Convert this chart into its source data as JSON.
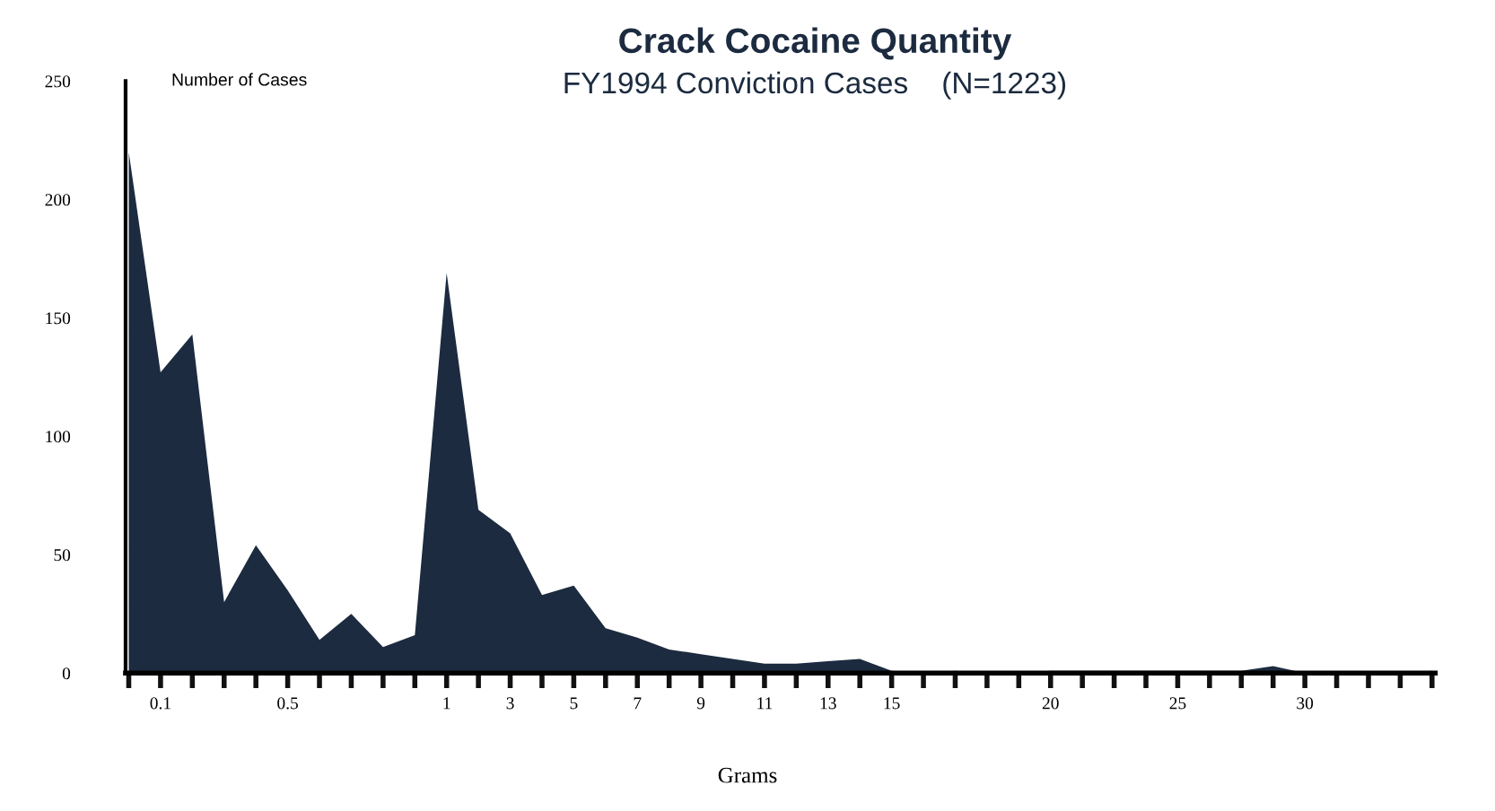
{
  "chart_data": {
    "type": "area",
    "title": "Crack Cocaine Quantity",
    "subtitle": "FY1994 Conviction Cases    (N=1223)",
    "xlabel": "Grams",
    "ylabel": "Number of Cases",
    "categories": [
      null,
      "0.1",
      null,
      null,
      null,
      "0.5",
      null,
      null,
      null,
      null,
      "1",
      null,
      "3",
      null,
      "5",
      null,
      "7",
      null,
      "9",
      null,
      "11",
      null,
      "13",
      null,
      "15",
      null,
      null,
      null,
      null,
      "20",
      null,
      null,
      null,
      "25",
      null,
      null,
      null,
      "30",
      null,
      null,
      null,
      null
    ],
    "values": [
      220,
      127,
      143,
      30,
      54,
      35,
      14,
      25,
      11,
      16,
      169,
      69,
      59,
      33,
      37,
      19,
      15,
      10,
      8,
      6,
      4,
      4,
      5,
      6,
      1,
      0,
      1,
      0,
      0,
      1,
      1,
      1,
      1,
      1,
      1,
      1,
      3,
      0,
      0,
      0,
      0,
      1
    ],
    "color": "#1c2b3f",
    "ylim": [
      0,
      250
    ],
    "yticks": [
      0,
      50,
      100,
      150,
      200,
      250
    ],
    "grid": false,
    "legend": false
  }
}
